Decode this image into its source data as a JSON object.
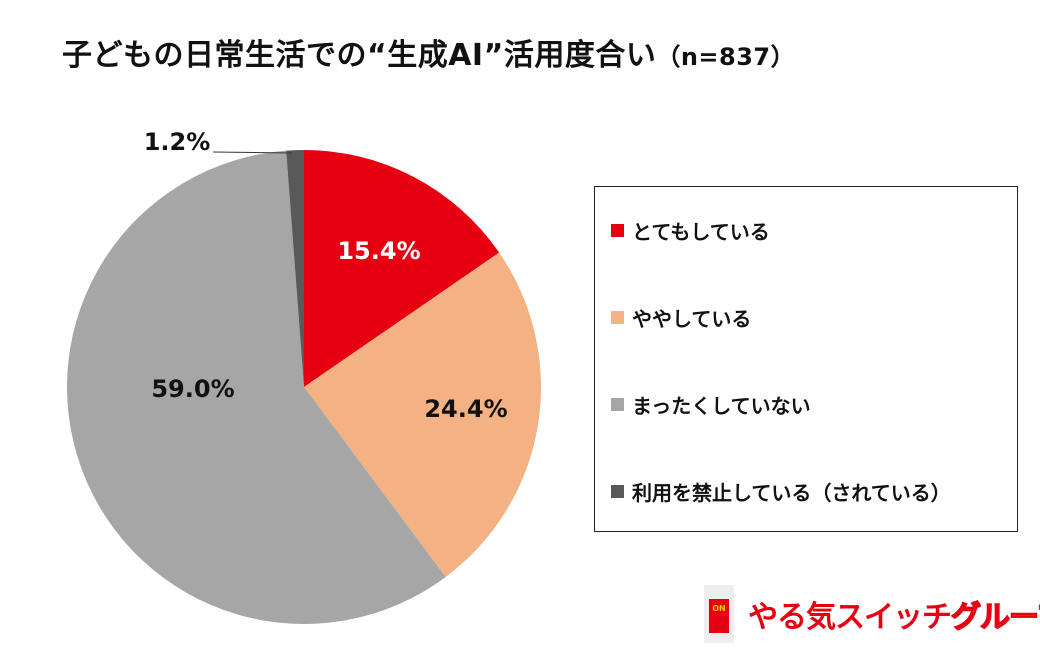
{
  "title": "子どもの日常生活での“生成AI”活用度合い",
  "title_n": "（n=837）",
  "chart_data": {
    "type": "pie",
    "title": "子どもの日常生活での“生成AI”活用度合い（n=837）",
    "start": "top",
    "direction": "clockwise",
    "legend_placement": "right",
    "slices": [
      {
        "name": "とてもしている",
        "value": 15.4,
        "label": "15.4%",
        "color": "#e60012"
      },
      {
        "name": "ややしている",
        "value": 24.4,
        "label": "24.4%",
        "color": "#f4b183"
      },
      {
        "name": "まったくしていない",
        "value": 59.0,
        "label": "59.0%",
        "color": "#a6a6a6"
      },
      {
        "name": "利用を禁止している（されている）",
        "value": 1.2,
        "label": "1.2%",
        "color": "#595959"
      }
    ]
  },
  "logo": {
    "text": "やる気スイッチ",
    "text2": "グループ",
    "badge": "ON"
  }
}
